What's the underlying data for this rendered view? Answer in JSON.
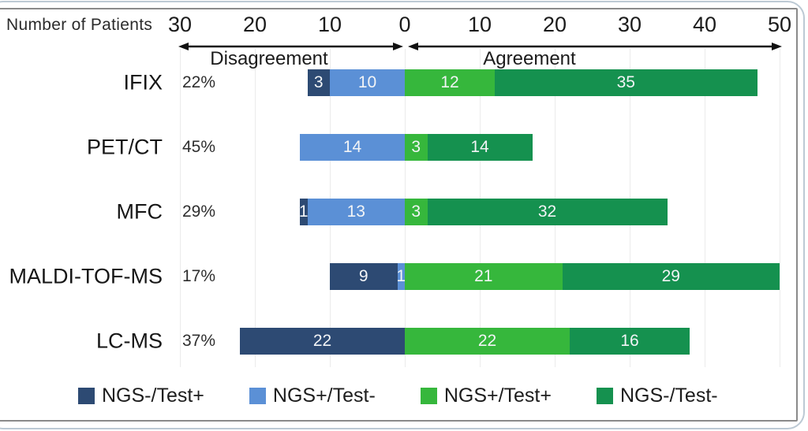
{
  "header": {
    "axis_title": "Number of Patients",
    "left_section_label": "Disagreement",
    "right_section_label": "Agreement"
  },
  "chart_data": {
    "type": "bar",
    "subtype": "horizontal-diverging-stacked",
    "title": "Number of Patients",
    "xlabel": "Number of Patients",
    "axis": {
      "ticks": [
        "30",
        "20",
        "10",
        "0",
        "10",
        "20",
        "30",
        "40",
        "50"
      ],
      "left_max": 30,
      "right_max": 50,
      "tick_interval": 10,
      "grid": true
    },
    "sections": {
      "left": "Disagreement",
      "right": "Agreement"
    },
    "categories": [
      "IFIX",
      "PET/CT",
      "MFC",
      "MALDI-TOF-MS",
      "LC-MS"
    ],
    "percent_labels": [
      "22%",
      "45%",
      "29%",
      "17%",
      "37%"
    ],
    "series": [
      {
        "name": "NGS-/Test+",
        "side": "left",
        "color": "#2d4a73",
        "values": [
          3,
          0,
          1,
          9,
          22
        ]
      },
      {
        "name": "NGS+/Test-",
        "side": "left",
        "color": "#5b90d6",
        "values": [
          10,
          14,
          13,
          1,
          0
        ]
      },
      {
        "name": "NGS+/Test+",
        "side": "right",
        "color": "#36b73c",
        "values": [
          12,
          3,
          3,
          21,
          22
        ]
      },
      {
        "name": "NGS-/Test-",
        "side": "right",
        "color": "#15914f",
        "values": [
          35,
          14,
          32,
          29,
          16
        ]
      }
    ],
    "legend_position": "bottom"
  },
  "colors": {
    "ngs_neg_test_pos": "#2d4a73",
    "ngs_pos_test_neg": "#5b90d6",
    "ngs_pos_test_pos": "#36b73c",
    "ngs_neg_test_neg": "#15914f",
    "gridline": "#ebebeb",
    "frame": "#8a8a8a",
    "outer_border": "#bcc9d4"
  }
}
